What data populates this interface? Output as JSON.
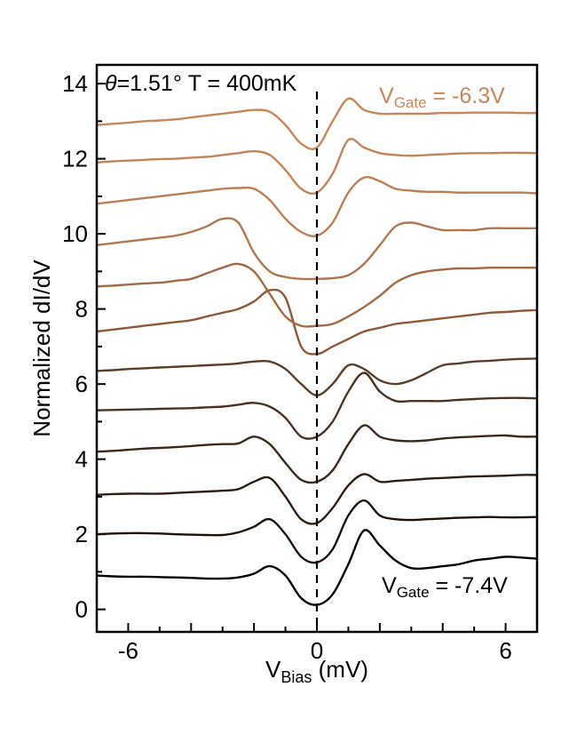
{
  "chart_data": {
    "type": "line",
    "title": "",
    "xlabel_main": "V",
    "xlabel_sub": "Bias",
    "xlabel_unit": " (mV)",
    "ylabel": "Normalized dI/dV",
    "xlim": [
      -7,
      7
    ],
    "ylim": [
      -0.6,
      14.5
    ],
    "xticks": [
      -6,
      0,
      6
    ],
    "yticks": [
      0,
      2,
      4,
      6,
      8,
      10,
      12,
      14
    ],
    "dashed_line_x": 0,
    "annotation_theta": {
      "symbol": "θ",
      "text": "=1.51°  T = 400mK"
    },
    "annotation_top": {
      "main": "V",
      "sub": "Gate",
      "value": " = -6.3V",
      "color": "#c8865a"
    },
    "annotation_bottom": {
      "main": "V",
      "sub": "Gate",
      "value": " = -7.4V",
      "color": "#000000"
    },
    "x": [
      -7.0,
      -6.5,
      -6.0,
      -5.5,
      -5.0,
      -4.5,
      -4.0,
      -3.5,
      -3.0,
      -2.5,
      -2.0,
      -1.5,
      -1.0,
      -0.5,
      0.0,
      0.5,
      1.0,
      1.5,
      2.0,
      2.5,
      3.0,
      3.5,
      4.0,
      4.5,
      5.0,
      5.5,
      6.0,
      6.5,
      7.0
    ],
    "series": [
      {
        "name": "trace-1",
        "color": "#000000",
        "values": [
          0.9,
          0.88,
          0.87,
          0.87,
          0.86,
          0.85,
          0.84,
          0.82,
          0.82,
          0.85,
          0.95,
          1.15,
          0.9,
          0.3,
          0.12,
          0.4,
          1.2,
          2.1,
          1.7,
          1.3,
          1.1,
          1.1,
          1.15,
          1.2,
          1.3,
          1.35,
          1.4,
          1.38,
          1.35
        ]
      },
      {
        "name": "trace-2",
        "color": "#1c120c",
        "values": [
          2.0,
          2.02,
          2.03,
          2.03,
          2.02,
          2.0,
          1.99,
          1.98,
          1.98,
          2.05,
          2.2,
          2.4,
          2.0,
          1.4,
          1.25,
          1.6,
          2.5,
          2.9,
          2.5,
          2.4,
          2.38,
          2.4,
          2.42,
          2.44,
          2.45,
          2.46,
          2.45,
          2.45,
          2.46
        ]
      },
      {
        "name": "trace-3",
        "color": "#2e1d12",
        "values": [
          3.05,
          3.07,
          3.08,
          3.08,
          3.08,
          3.1,
          3.12,
          3.14,
          3.16,
          3.2,
          3.4,
          3.5,
          3.0,
          2.4,
          2.3,
          2.7,
          3.3,
          3.6,
          3.4,
          3.42,
          3.45,
          3.48,
          3.5,
          3.52,
          3.54,
          3.55,
          3.56,
          3.58,
          3.58
        ]
      },
      {
        "name": "trace-4",
        "color": "#3e2819",
        "values": [
          4.2,
          4.22,
          4.25,
          4.28,
          4.3,
          4.32,
          4.35,
          4.38,
          4.4,
          4.42,
          4.6,
          4.4,
          3.9,
          3.45,
          3.4,
          3.7,
          4.4,
          4.9,
          4.6,
          4.5,
          4.48,
          4.5,
          4.55,
          4.58,
          4.6,
          4.62,
          4.63,
          4.6,
          4.6
        ]
      },
      {
        "name": "trace-5",
        "color": "#4d3220",
        "values": [
          5.3,
          5.31,
          5.32,
          5.33,
          5.34,
          5.35,
          5.36,
          5.38,
          5.4,
          5.45,
          5.5,
          5.4,
          5.1,
          4.6,
          4.6,
          5.0,
          5.8,
          6.3,
          5.8,
          5.55,
          5.55,
          5.55,
          5.55,
          5.58,
          5.6,
          5.62,
          5.63,
          5.63,
          5.62
        ]
      },
      {
        "name": "trace-6",
        "color": "#5e3d26",
        "values": [
          6.35,
          6.37,
          6.4,
          6.42,
          6.44,
          6.46,
          6.48,
          6.5,
          6.52,
          6.55,
          6.6,
          6.6,
          6.4,
          6.0,
          5.7,
          6.0,
          6.5,
          6.4,
          6.1,
          6.0,
          6.1,
          6.3,
          6.5,
          6.55,
          6.6,
          6.62,
          6.65,
          6.67,
          6.68
        ]
      },
      {
        "name": "trace-7",
        "color": "#8e5a38",
        "values": [
          7.4,
          7.45,
          7.5,
          7.55,
          7.6,
          7.65,
          7.7,
          7.8,
          7.9,
          8.0,
          8.2,
          8.5,
          8.3,
          7.0,
          6.8,
          7.0,
          7.2,
          7.4,
          7.5,
          7.6,
          7.65,
          7.7,
          7.75,
          7.8,
          7.85,
          7.9,
          7.92,
          7.95,
          7.97
        ]
      },
      {
        "name": "trace-8",
        "color": "#a36a45",
        "values": [
          8.6,
          8.62,
          8.65,
          8.68,
          8.7,
          8.75,
          8.8,
          8.95,
          9.1,
          9.2,
          9.0,
          8.4,
          7.8,
          7.55,
          7.55,
          7.6,
          7.8,
          8.05,
          8.35,
          8.7,
          8.9,
          9.0,
          9.05,
          9.08,
          9.08,
          9.1,
          9.1,
          9.1,
          9.1
        ]
      },
      {
        "name": "trace-9",
        "color": "#b3774f",
        "values": [
          9.7,
          9.75,
          9.8,
          9.85,
          9.9,
          9.95,
          10.05,
          10.2,
          10.4,
          10.3,
          9.5,
          9.0,
          8.85,
          8.8,
          8.8,
          8.82,
          8.9,
          9.2,
          9.7,
          10.2,
          10.3,
          10.2,
          10.1,
          10.1,
          10.1,
          10.15,
          10.15,
          10.15,
          10.15
        ]
      },
      {
        "name": "trace-10",
        "color": "#bd7f55",
        "values": [
          10.8,
          10.85,
          10.9,
          10.95,
          11.0,
          11.05,
          11.1,
          11.15,
          11.2,
          11.22,
          11.2,
          10.9,
          10.4,
          10.05,
          9.95,
          10.3,
          11.1,
          11.5,
          11.4,
          11.2,
          11.15,
          11.12,
          11.12,
          11.1,
          11.1,
          11.1,
          11.1,
          11.1,
          11.08
        ]
      },
      {
        "name": "trace-11",
        "color": "#c3845a",
        "values": [
          11.9,
          11.93,
          11.95,
          11.97,
          11.99,
          12.0,
          12.03,
          12.05,
          12.1,
          12.15,
          12.2,
          12.1,
          11.7,
          11.2,
          11.1,
          11.6,
          12.5,
          12.3,
          12.15,
          12.1,
          12.08,
          12.1,
          12.12,
          12.14,
          12.15,
          12.15,
          12.16,
          12.16,
          12.15
        ]
      },
      {
        "name": "trace-12",
        "color": "#c8865a",
        "values": [
          12.9,
          12.93,
          12.96,
          13.0,
          13.02,
          13.05,
          13.1,
          13.15,
          13.2,
          13.25,
          13.3,
          13.25,
          12.9,
          12.4,
          12.3,
          13.0,
          13.6,
          13.3,
          13.2,
          13.2,
          13.2,
          13.2,
          13.22,
          13.22,
          13.23,
          13.23,
          13.23,
          13.22,
          13.22
        ]
      }
    ]
  }
}
